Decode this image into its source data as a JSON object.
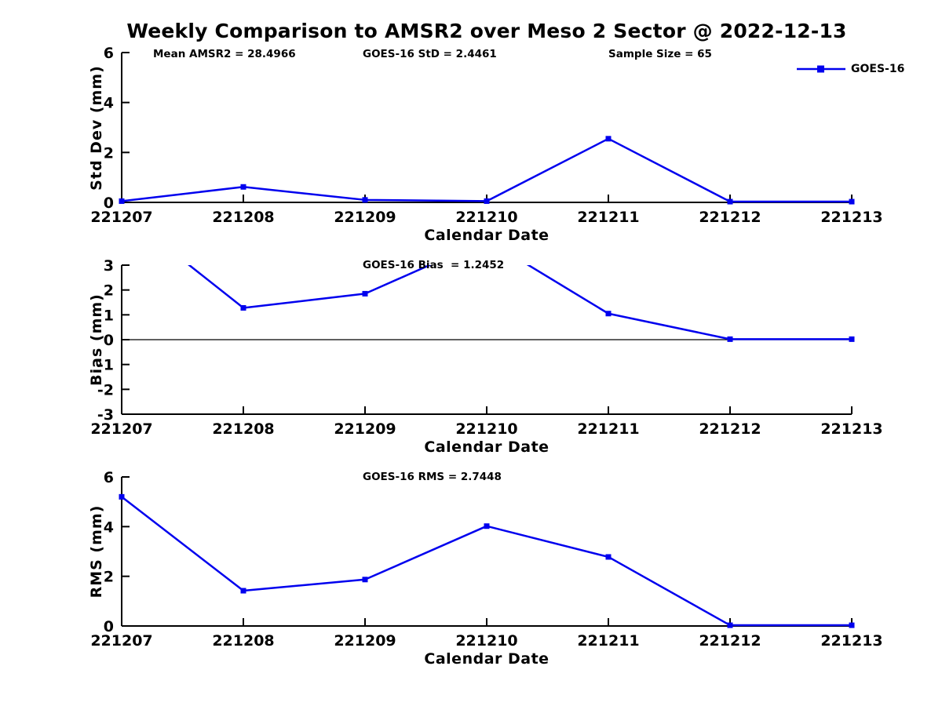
{
  "title": "Weekly Comparison to AMSR2 over Meso 2 Sector @ 2022-12-13",
  "legend": {
    "label": "GOES-16",
    "position": "top-right"
  },
  "colors": {
    "series": "#0000EE",
    "axis": "#000000",
    "background": "#FFFFFF"
  },
  "chart_data": {
    "type": "line",
    "categories": [
      "221207",
      "221208",
      "221209",
      "221210",
      "221211",
      "221212",
      "221213"
    ],
    "charts": [
      {
        "name": "std-dev",
        "ylabel": "Std Dev (mm)",
        "xlabel": "Calendar Date",
        "ylim": [
          0,
          6
        ],
        "ytick_values": [
          0,
          2,
          4,
          6
        ],
        "zero_line": false,
        "grid": false,
        "annotations": [
          {
            "text": "Mean AMSR2 = 28.4966"
          },
          {
            "text": "GOES-16 StD = 2.4461"
          },
          {
            "text": "Sample Size = 65"
          }
        ],
        "series": [
          {
            "name": "GOES-16",
            "values": [
              0.05,
              0.62,
              0.1,
              0.05,
              2.55,
              0.03,
              0.03
            ]
          }
        ]
      },
      {
        "name": "bias",
        "ylabel": "Bias (mm)",
        "xlabel": "Calendar Date",
        "ylim": [
          -3,
          3
        ],
        "ytick_values": [
          -3,
          -2,
          -1,
          0,
          1,
          2,
          3
        ],
        "zero_line": true,
        "grid": false,
        "annotations": [
          {
            "text": "GOES-16 Bias  = 1.2452"
          }
        ],
        "series": [
          {
            "name": "GOES-16",
            "values": [
              5.15,
              1.28,
              1.85,
              4.02,
              1.05,
              0.02,
              0.02
            ]
          },
          {
            "note": "values above ylim max 3 are clipped out of view (221207, 221210)"
          }
        ]
      },
      {
        "name": "rms",
        "ylabel": "RMS (mm)",
        "xlabel": "Calendar Date",
        "ylim": [
          0,
          6
        ],
        "ytick_values": [
          0,
          2,
          4,
          6
        ],
        "zero_line": false,
        "grid": false,
        "annotations": [
          {
            "text": "GOES-16 RMS = 2.7448"
          }
        ],
        "series": [
          {
            "name": "GOES-16",
            "values": [
              5.2,
              1.42,
              1.87,
              4.02,
              2.78,
              0.03,
              0.03
            ]
          }
        ]
      }
    ]
  }
}
